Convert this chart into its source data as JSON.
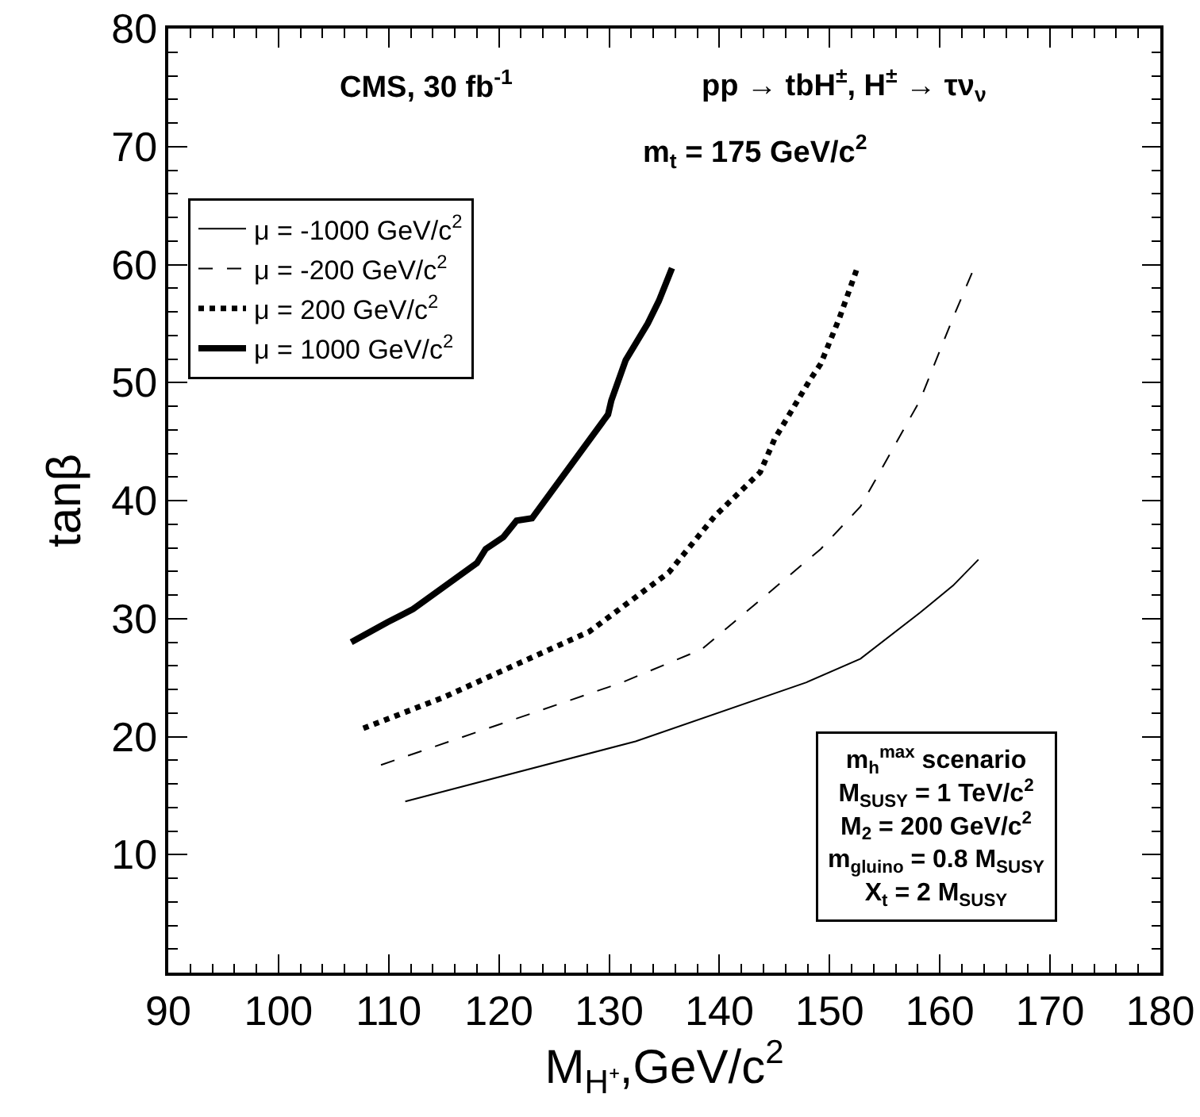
{
  "chart_data": {
    "type": "line",
    "xlabel": "M$_{H⁺}$,GeV/c$^{2}$",
    "ylabel": "tanβ",
    "xlim": [
      90,
      180
    ],
    "xticks": [
      90,
      100,
      110,
      120,
      130,
      140,
      150,
      160,
      170,
      180
    ],
    "ylim": [
      0,
      80
    ],
    "yticks": [
      10,
      20,
      30,
      40,
      50,
      60,
      70,
      80
    ],
    "grid": false,
    "legend": "top left",
    "marker": "none",
    "annotations": [
      "CMS, 30 fb$^{-1}$",
      "pp → tbH$^{±}$, H$^{±}$ → τν$_{ν}$",
      "m$_{t}$ = 175 GeV/c$^{2}$",
      "m$_{h}$$^{max}$ scenario\nM$_{SUSY}$ = 1 TeV/c$^{2}$\nM$_{2}$ = 200 GeV/c$^{2}$\nm$_{gluino}$ = 0.8 M$_{SUSY}$\nX$_{t}$ = 2 M$_{SUSY}$"
    ],
    "series": [
      {
        "name": "μ = -1000 GeV/c$^{2}$",
        "color": "#000000",
        "line_style": "solid",
        "x": [
          111.5,
          132.4,
          147.9,
          152.8,
          158.2,
          161.2,
          163.5
        ],
        "values": [
          14.5,
          19.6,
          24.6,
          26.6,
          30.5,
          32.8,
          35
        ]
      },
      {
        "name": "μ = -200 GeV/c$^{2}$",
        "color": "#000000",
        "line_style": "dashed",
        "x": [
          109.3,
          131.2,
          138.4,
          149.2,
          152.8,
          158.2,
          161.2,
          163.1
        ],
        "values": [
          17.6,
          24.6,
          27.4,
          35.9,
          39.5,
          48.5,
          55.5,
          59.7
        ]
      },
      {
        "name": "μ = 200 GeV/c$^{2}$",
        "color": "#000000",
        "line_style": "dotted",
        "x": [
          107.7,
          114.9,
          128.2,
          135.4,
          139.6,
          143.7,
          145,
          148.2,
          149.2,
          150.9,
          152.5
        ],
        "values": [
          20.7,
          23.3,
          28.9,
          33.9,
          38.7,
          42.4,
          45.2,
          50.2,
          51.6,
          55.5,
          59.7
        ]
      },
      {
        "name": "μ = 1000 GeV/c$^{2}$",
        "color": "#000000",
        "line_style": "solid",
        "x": [
          106.6,
          109.9,
          112.2,
          118,
          118.8,
          120.4,
          121.6,
          123,
          129.9,
          130.2,
          131.5,
          133.5,
          134.5,
          135.7
        ],
        "values": [
          28,
          29.7,
          30.8,
          34.7,
          35.9,
          36.9,
          38.3,
          38.5,
          47.3,
          48.5,
          51.9,
          55,
          56.9,
          59.7
        ]
      }
    ]
  }
}
